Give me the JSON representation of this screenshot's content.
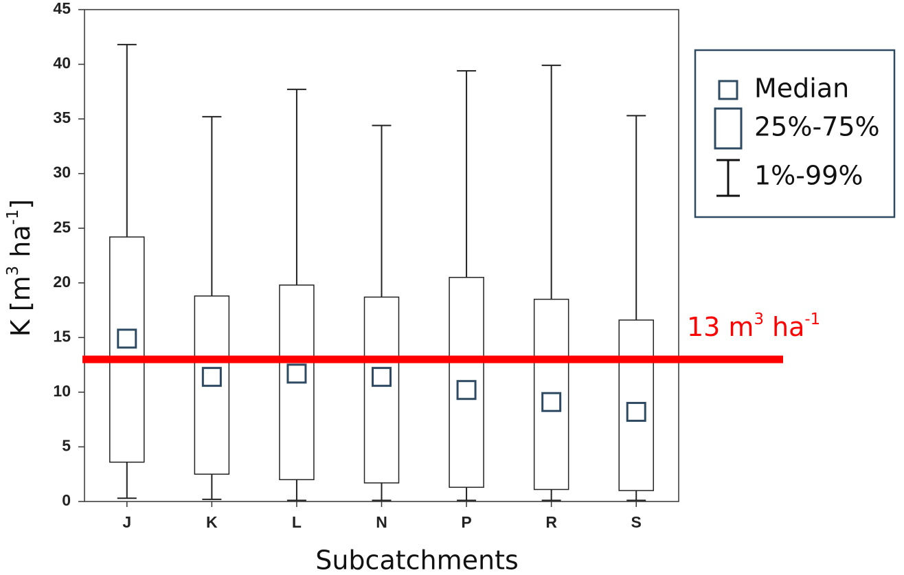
{
  "chart_data": {
    "type": "box",
    "ylabel_parts": [
      "K [m",
      "3",
      " ha",
      "-1",
      "]"
    ],
    "xlabel": "Subcatchments",
    "categories": [
      "J",
      "K",
      "L",
      "N",
      "P",
      "R",
      "S"
    ],
    "whisker_high": [
      41.8,
      35.2,
      37.7,
      34.4,
      39.4,
      39.9,
      35.3
    ],
    "q3": [
      24.2,
      18.8,
      19.8,
      18.7,
      20.5,
      18.5,
      16.6
    ],
    "median": [
      14.9,
      11.4,
      11.7,
      11.4,
      10.2,
      9.1,
      8.2
    ],
    "q1": [
      3.6,
      2.5,
      2.0,
      1.7,
      1.3,
      1.1,
      1.0
    ],
    "whisker_low": [
      0.3,
      0.2,
      0.1,
      0.1,
      0.1,
      0.1,
      0.1
    ],
    "ylim": [
      0,
      45
    ],
    "yticks": [
      0,
      5,
      10,
      15,
      20,
      25,
      30,
      35,
      40,
      45
    ],
    "median_color": "#2e4a62",
    "reference_line": {
      "value": 13,
      "color": "#ff0000",
      "label_parts": [
        "13 m",
        "3",
        " ha",
        "-1"
      ]
    },
    "legend": [
      "Median",
      "25%-75%",
      "1%-99%"
    ]
  }
}
